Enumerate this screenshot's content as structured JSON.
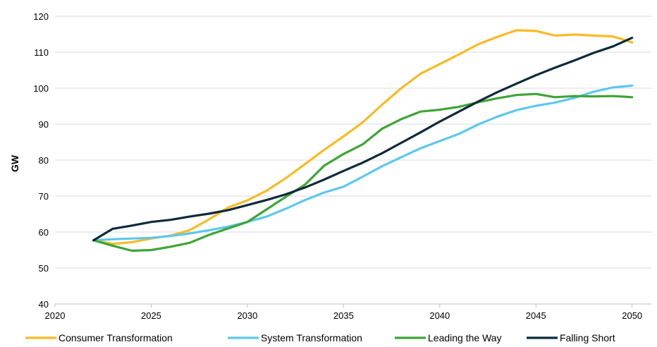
{
  "chart_data": {
    "type": "line",
    "title": "",
    "xlabel": "",
    "ylabel": "GW",
    "xlim": [
      2020,
      2051
    ],
    "ylim": [
      40,
      120
    ],
    "x_ticks": [
      2020,
      2025,
      2030,
      2035,
      2040,
      2045,
      2050
    ],
    "y_ticks": [
      40,
      50,
      60,
      70,
      80,
      90,
      100,
      110,
      120
    ],
    "grid": "horizontal",
    "legend_position": "bottom",
    "x": [
      2022,
      2023,
      2024,
      2025,
      2026,
      2027,
      2028,
      2029,
      2030,
      2031,
      2032,
      2033,
      2034,
      2035,
      2036,
      2037,
      2038,
      2039,
      2040,
      2041,
      2042,
      2043,
      2044,
      2045,
      2046,
      2047,
      2048,
      2049,
      2050
    ],
    "series": [
      {
        "name": "Consumer Transformation",
        "color": "#FBBA24",
        "values": [
          57.7,
          56.7,
          57.2,
          58.2,
          59.0,
          60.5,
          63.5,
          66.8,
          68.8,
          71.5,
          75.0,
          78.9,
          82.9,
          86.6,
          90.5,
          95.4,
          100.0,
          104.0,
          106.7,
          109.4,
          112.2,
          114.3,
          116.1,
          115.9,
          114.6,
          114.9,
          114.6,
          114.4,
          112.7
        ]
      },
      {
        "name": "System Transformation",
        "color": "#5BC8F0",
        "values": [
          57.7,
          58.0,
          58.2,
          58.4,
          58.9,
          59.6,
          60.5,
          61.5,
          62.8,
          64.3,
          66.5,
          68.9,
          71.0,
          72.6,
          75.4,
          78.3,
          80.8,
          83.3,
          85.3,
          87.3,
          89.9,
          92.1,
          93.9,
          95.1,
          96.0,
          97.3,
          99.0,
          100.2,
          100.7
        ]
      },
      {
        "name": "Leading the Way",
        "color": "#3DA535",
        "values": [
          57.7,
          56.2,
          54.8,
          55.0,
          55.9,
          57.0,
          59.2,
          61.0,
          62.8,
          66.3,
          69.8,
          73.2,
          78.5,
          81.7,
          84.4,
          88.7,
          91.4,
          93.5,
          94.0,
          94.8,
          96.1,
          97.2,
          98.1,
          98.4,
          97.5,
          97.8,
          97.7,
          97.8,
          97.5
        ]
      },
      {
        "name": "Falling Short",
        "color": "#0C2B3A",
        "values": [
          57.7,
          60.9,
          61.8,
          62.8,
          63.4,
          64.3,
          65.1,
          66.1,
          67.5,
          68.9,
          70.5,
          72.4,
          74.6,
          77.0,
          79.3,
          81.9,
          84.8,
          87.7,
          90.7,
          93.5,
          96.3,
          98.9,
          101.3,
          103.6,
          105.7,
          107.7,
          109.8,
          111.6,
          114.0
        ]
      }
    ]
  }
}
